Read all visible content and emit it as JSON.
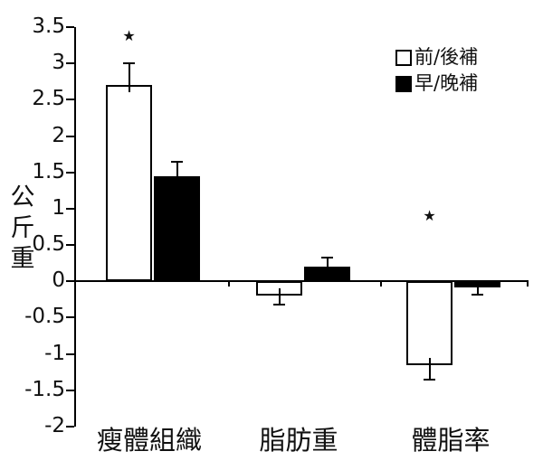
{
  "chart_data": {
    "type": "bar",
    "title": "",
    "xlabel": "",
    "ylabel": "公斤重",
    "categories": [
      "瘦體組織",
      "脂肪重",
      "體脂率"
    ],
    "series": [
      {
        "name": "前/後補",
        "fill": "#ffffff",
        "values": [
          2.7,
          -0.2,
          -1.15
        ],
        "errors": [
          0.3,
          0.12,
          0.2
        ]
      },
      {
        "name": "早/晚補",
        "fill": "#000000",
        "values": [
          1.45,
          0.2,
          -0.08
        ],
        "errors": [
          0.2,
          0.13,
          0.1
        ]
      }
    ],
    "ylim": [
      -2,
      3.5
    ],
    "y_tick_step": 0.5,
    "y_ticks": [
      "3.5",
      "3",
      "2.5",
      "2",
      "1.5",
      "1",
      "0.5",
      "0",
      "-0.5",
      "-1",
      "-1.5",
      "-2"
    ],
    "grid": false,
    "legend_position": "upper-right",
    "annotations": [
      {
        "text": "★",
        "category": 0,
        "series": 0,
        "value": 3.38
      },
      {
        "text": "★",
        "category": 2,
        "series": 0,
        "value": 0.9
      }
    ],
    "bar_edge_color": "#000000",
    "axis_color": "#000000"
  }
}
